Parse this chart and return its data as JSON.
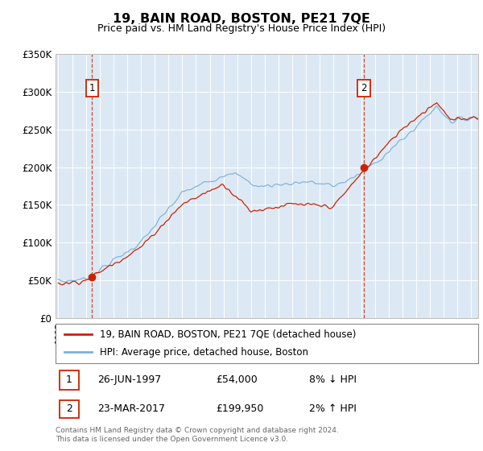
{
  "title": "19, BAIN ROAD, BOSTON, PE21 7QE",
  "subtitle": "Price paid vs. HM Land Registry's House Price Index (HPI)",
  "legend_line1": "19, BAIN ROAD, BOSTON, PE21 7QE (detached house)",
  "legend_line2": "HPI: Average price, detached house, Boston",
  "marker1_date": "26-JUN-1997",
  "marker1_price": "£54,000",
  "marker1_hpi": "8% ↓ HPI",
  "marker2_date": "23-MAR-2017",
  "marker2_price": "£199,950",
  "marker2_hpi": "2% ↑ HPI",
  "footer": "Contains HM Land Registry data © Crown copyright and database right 2024.\nThis data is licensed under the Open Government Licence v3.0.",
  "plot_bg": "#dce9f5",
  "red_line_color": "#cc2200",
  "blue_line_color": "#7fb0d8",
  "ylim": [
    0,
    350000
  ],
  "yticks": [
    0,
    50000,
    100000,
    150000,
    200000,
    250000,
    300000,
    350000
  ],
  "ytick_labels": [
    "£0",
    "£50K",
    "£100K",
    "£150K",
    "£200K",
    "£250K",
    "£300K",
    "£350K"
  ],
  "year_start": 1995,
  "year_end": 2025,
  "sale1_year": 1997.46,
  "sale1_price": 54000,
  "sale2_year": 2017.21,
  "sale2_price": 199950
}
